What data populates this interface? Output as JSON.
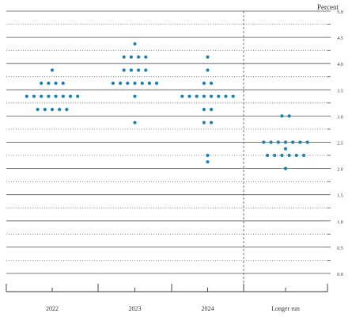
{
  "chart_data": {
    "type": "scatter",
    "title": "",
    "ylabel": "Percent",
    "xlabel": "",
    "ylim": [
      0,
      5
    ],
    "ytick_step": 0.25,
    "ytick_labels": [
      "0.0",
      "0.5",
      "1.0",
      "1.5",
      "2.0",
      "2.5",
      "3.0",
      "3.5",
      "4.0",
      "4.5",
      "5.0"
    ],
    "categories": [
      "2022",
      "2023",
      "2024",
      "Longer run"
    ],
    "grid": true,
    "separator_before": "Longer run",
    "dot_color": "#1f7fb0",
    "series": [
      {
        "category": "2022",
        "points": [
          {
            "y": 3.875,
            "n": 1
          },
          {
            "y": 3.625,
            "n": 4
          },
          {
            "y": 3.375,
            "n": 8
          },
          {
            "y": 3.125,
            "n": 5
          }
        ]
      },
      {
        "category": "2023",
        "points": [
          {
            "y": 4.375,
            "n": 1
          },
          {
            "y": 4.125,
            "n": 4
          },
          {
            "y": 3.875,
            "n": 4
          },
          {
            "y": 3.625,
            "n": 7
          },
          {
            "y": 3.375,
            "n": 1
          },
          {
            "y": 2.875,
            "n": 1
          }
        ]
      },
      {
        "category": "2024",
        "points": [
          {
            "y": 4.125,
            "n": 1
          },
          {
            "y": 3.875,
            "n": 1
          },
          {
            "y": 3.625,
            "n": 2
          },
          {
            "y": 3.375,
            "n": 8
          },
          {
            "y": 3.125,
            "n": 2
          },
          {
            "y": 2.875,
            "n": 2
          },
          {
            "y": 2.25,
            "n": 1
          },
          {
            "y": 2.125,
            "n": 1
          }
        ]
      },
      {
        "category": "Longer run",
        "points": [
          {
            "y": 3.0,
            "n": 2
          },
          {
            "y": 2.5,
            "n": 7
          },
          {
            "y": 2.375,
            "n": 1
          },
          {
            "y": 2.25,
            "n": 6
          },
          {
            "y": 2.0,
            "n": 1
          }
        ]
      }
    ]
  }
}
